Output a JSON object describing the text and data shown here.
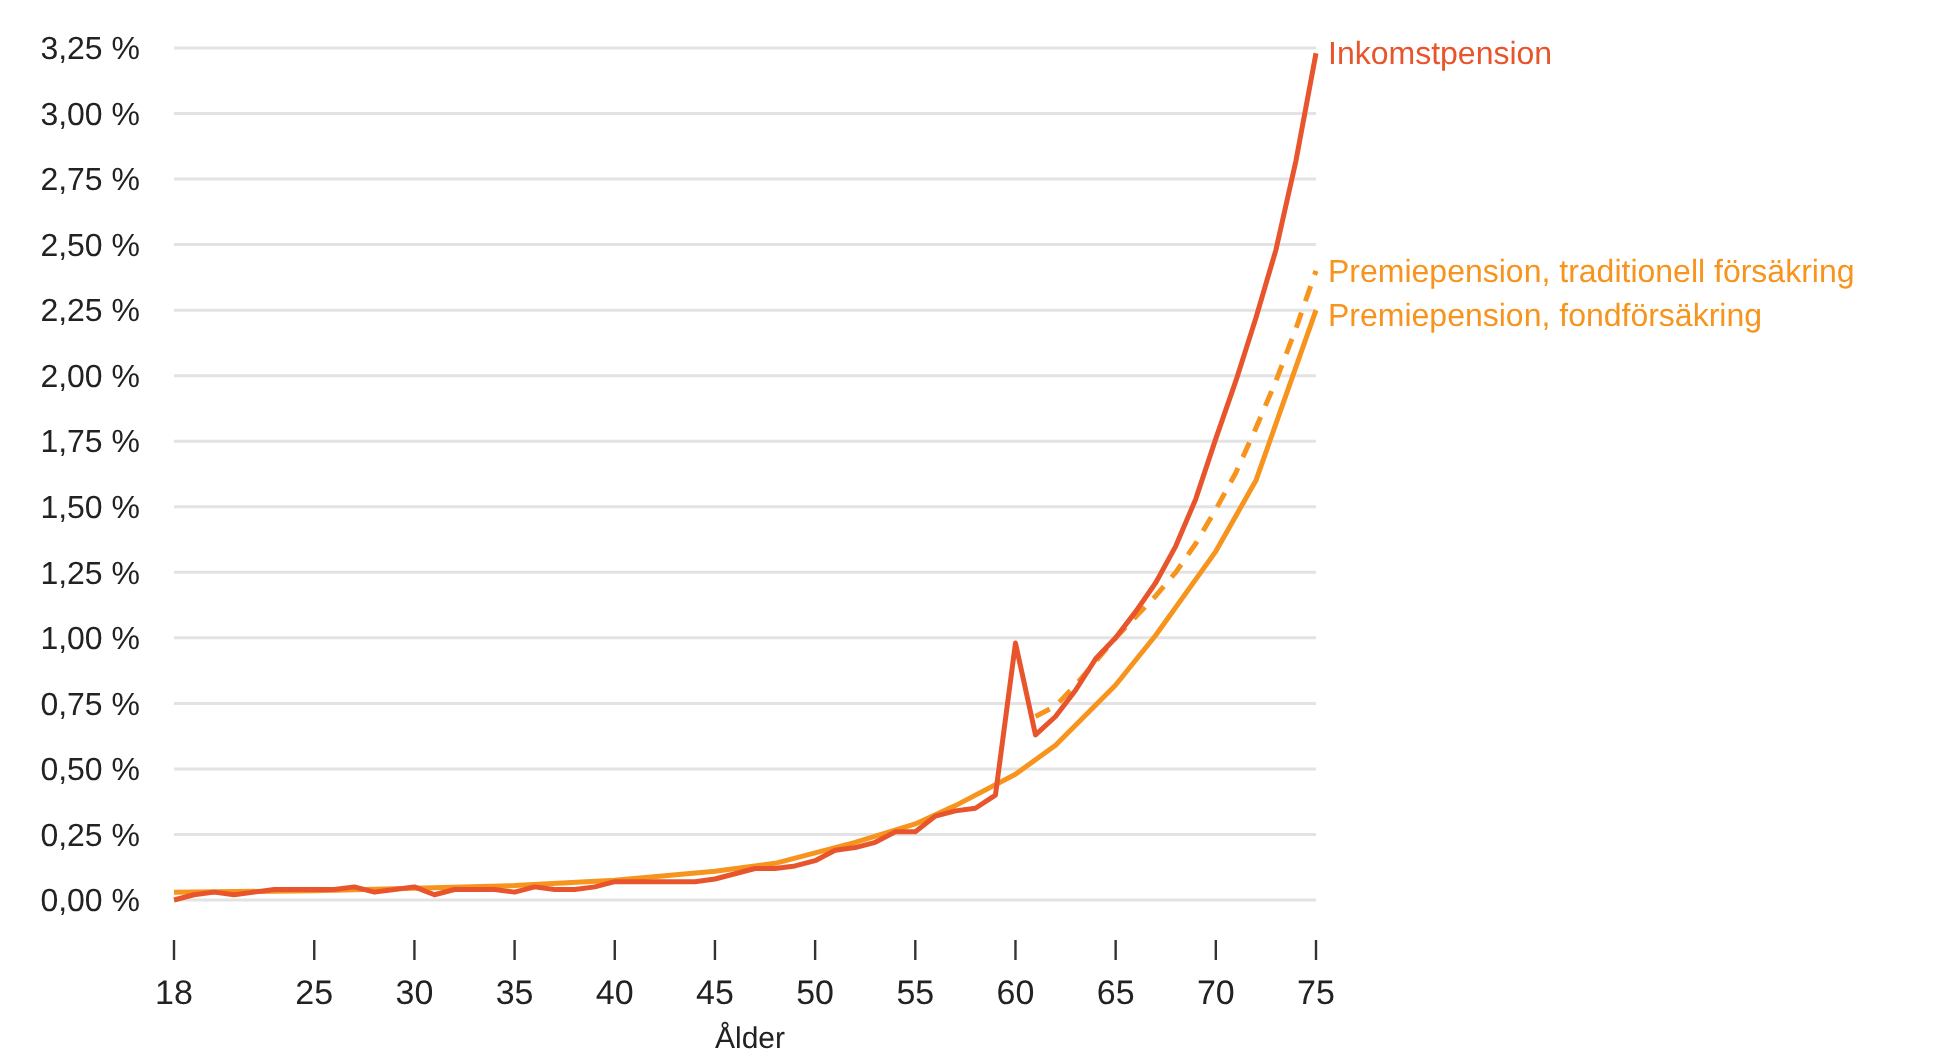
{
  "chart_data": {
    "type": "line",
    "xlabel": "Ålder",
    "xlim": [
      18,
      75
    ],
    "xticks": [
      18,
      25,
      30,
      35,
      40,
      45,
      50,
      55,
      60,
      65,
      70,
      75
    ],
    "ylim": [
      0,
      3.25
    ],
    "yticks": [
      {
        "value": 0,
        "label": "0,00 %"
      },
      {
        "value": 0.25,
        "label": "0,25 %"
      },
      {
        "value": 0.5,
        "label": "0,50 %"
      },
      {
        "value": 0.75,
        "label": "0,75 %"
      },
      {
        "value": 1,
        "label": "1,00 %"
      },
      {
        "value": 1.25,
        "label": "1,25 %"
      },
      {
        "value": 1.5,
        "label": "1,50 %"
      },
      {
        "value": 1.75,
        "label": "1,75 %"
      },
      {
        "value": 2,
        "label": "2,00 %"
      },
      {
        "value": 2.25,
        "label": "2,25 %"
      },
      {
        "value": 2.5,
        "label": "2,50 %"
      },
      {
        "value": 2.75,
        "label": "2,75 %"
      },
      {
        "value": 3,
        "label": "3,00 %"
      },
      {
        "value": 3.25,
        "label": "3,25 %"
      }
    ],
    "grid": "y",
    "legend": false,
    "series": [
      {
        "name": "Premiepension, fondförsäkring",
        "color": "#f7941d",
        "line_style": "solid",
        "x": [
          18,
          25,
          30,
          35,
          40,
          45,
          48,
          50,
          52,
          55,
          57,
          60,
          62,
          65,
          67,
          70,
          72,
          75
        ],
        "values": [
          0.03,
          0.035,
          0.045,
          0.055,
          0.075,
          0.11,
          0.14,
          0.18,
          0.22,
          0.29,
          0.36,
          0.48,
          0.59,
          0.82,
          1.01,
          1.33,
          1.6,
          2.25
        ]
      },
      {
        "name": "Premiepension, traditionell försäkring",
        "color": "#f7941d",
        "line_style": "dashed",
        "x": [
          61,
          62,
          63,
          64,
          65,
          66,
          67,
          68,
          69,
          70,
          71,
          72,
          73,
          74,
          75
        ],
        "values": [
          0.7,
          0.74,
          0.82,
          0.91,
          1.0,
          1.08,
          1.16,
          1.25,
          1.36,
          1.49,
          1.63,
          1.8,
          1.98,
          2.18,
          2.4
        ]
      },
      {
        "name": "Inkomstpension",
        "color": "#e8552d",
        "line_style": "solid",
        "x": [
          18,
          19,
          20,
          21,
          22,
          23,
          24,
          25,
          26,
          27,
          28,
          29,
          30,
          31,
          32,
          33,
          34,
          35,
          36,
          37,
          38,
          39,
          40,
          41,
          42,
          43,
          44,
          45,
          46,
          47,
          48,
          49,
          50,
          51,
          52,
          53,
          54,
          55,
          56,
          57,
          58,
          59,
          60,
          61,
          62,
          63,
          64,
          65,
          66,
          67,
          68,
          69,
          70,
          71,
          72,
          73,
          74,
          75
        ],
        "values": [
          0.0,
          0.02,
          0.03,
          0.02,
          0.03,
          0.04,
          0.04,
          0.04,
          0.04,
          0.05,
          0.03,
          0.04,
          0.05,
          0.02,
          0.04,
          0.04,
          0.04,
          0.03,
          0.05,
          0.04,
          0.04,
          0.05,
          0.07,
          0.07,
          0.07,
          0.07,
          0.07,
          0.08,
          0.1,
          0.12,
          0.12,
          0.13,
          0.15,
          0.19,
          0.2,
          0.22,
          0.26,
          0.26,
          0.32,
          0.34,
          0.35,
          0.4,
          0.98,
          0.63,
          0.7,
          0.8,
          0.92,
          1.0,
          1.1,
          1.21,
          1.35,
          1.53,
          1.76,
          1.98,
          2.22,
          2.48,
          2.82,
          3.23
        ]
      }
    ]
  }
}
